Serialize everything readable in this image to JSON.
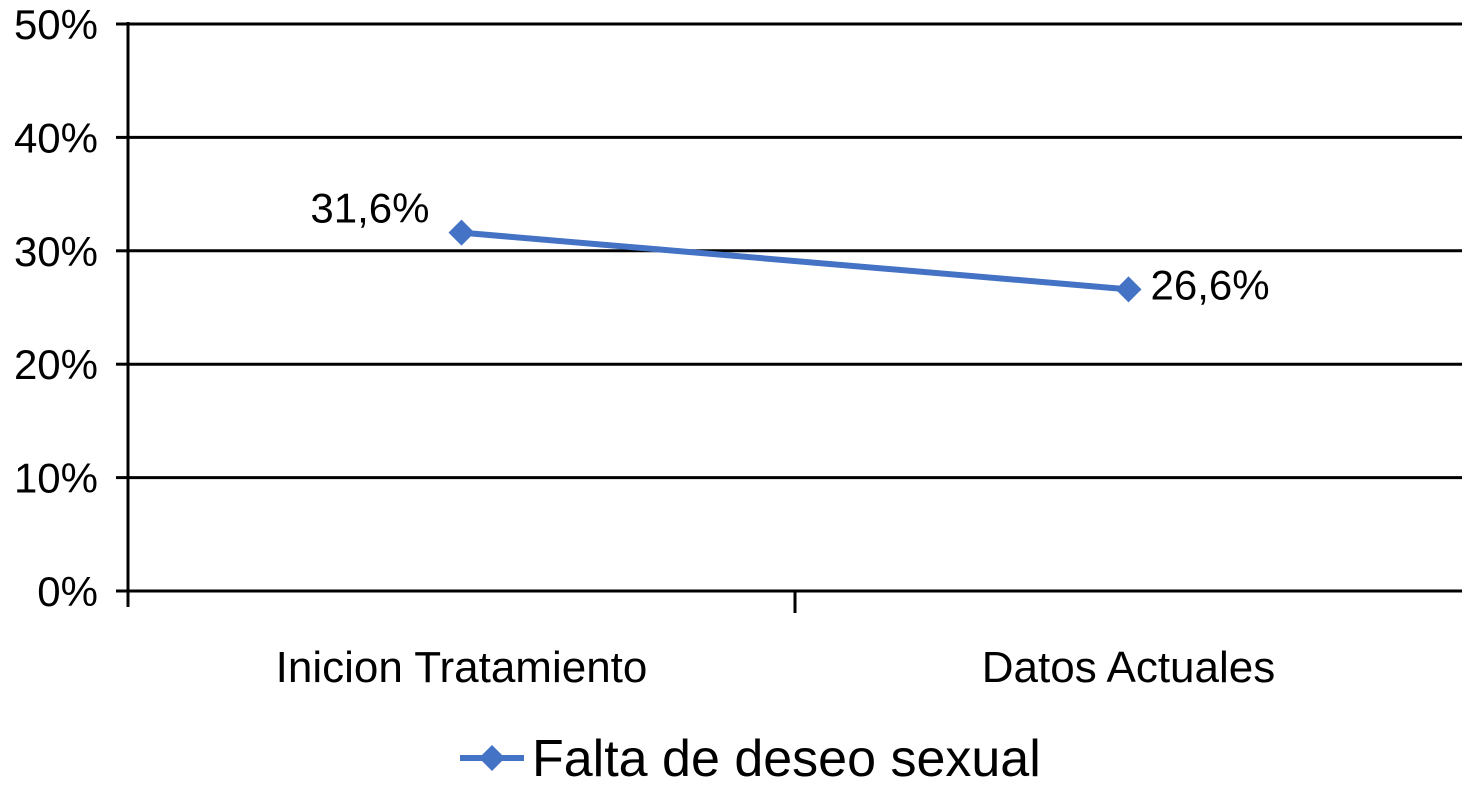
{
  "chart_data": {
    "type": "line",
    "categories": [
      "Inicion Tratamiento",
      "Datos Actuales"
    ],
    "series": [
      {
        "name": "Falta de deseo sexual",
        "values": [
          31.6,
          26.6
        ],
        "data_labels": [
          "31,6%",
          "26,6%"
        ],
        "color": "#4472C4",
        "marker": "diamond"
      }
    ],
    "ylim": [
      0,
      50
    ],
    "yticks": [
      0,
      10,
      20,
      30,
      40,
      50
    ],
    "ytick_labels": [
      "0%",
      "10%",
      "20%",
      "30%",
      "40%",
      "50%"
    ],
    "grid": true,
    "legend_position": "bottom",
    "title": "",
    "xlabel": "",
    "ylabel": ""
  }
}
